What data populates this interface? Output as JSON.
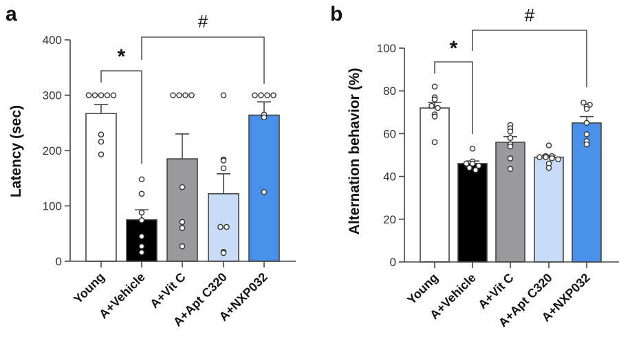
{
  "chart_data": [
    {
      "panel": "a",
      "type": "bar",
      "title": "",
      "xlabel": "",
      "ylabel": "Latency (sec)",
      "ylim": [
        0,
        400
      ],
      "yticks": [
        0,
        100,
        200,
        300,
        400
      ],
      "grid": false,
      "legend": "none",
      "categories": [
        "Young",
        "A+Vehicle",
        "A+Vit C",
        "A+Apt C320",
        "A+NXP032"
      ],
      "colors": [
        "#ffffff",
        "#000000",
        "#9a9a9c",
        "#c8dcf5",
        "#4a90e8"
      ],
      "values": [
        267,
        75,
        185,
        122,
        264
      ],
      "sem": [
        16,
        18,
        45,
        36,
        24
      ],
      "points": [
        [
          300,
          300,
          300,
          300,
          300,
          229,
          216,
          193
        ],
        [
          148,
          122,
          88,
          74,
          45,
          27,
          16
        ],
        [
          300,
          300,
          300,
          300,
          134,
          71,
          60,
          27
        ],
        [
          300,
          184,
          182,
          168,
          62,
          62,
          17,
          15
        ],
        [
          300,
          300,
          300,
          300,
          265,
          260,
          125
        ]
      ],
      "significance": [
        {
          "from": 0,
          "to": 1,
          "label": "*"
        },
        {
          "from": 1,
          "to": 4,
          "label": "#"
        }
      ]
    },
    {
      "panel": "b",
      "type": "bar",
      "title": "",
      "xlabel": "",
      "ylabel": "Alternation behavior (%)",
      "ylim": [
        0,
        100
      ],
      "yticks": [
        0,
        20,
        40,
        60,
        80,
        100
      ],
      "grid": false,
      "legend": "none",
      "categories": [
        "Young",
        "A+Vehicle",
        "A+Vit C",
        "A+Apt C320",
        "A+NXP032"
      ],
      "colors": [
        "#ffffff",
        "#000000",
        "#9a9a9c",
        "#c8dcf5",
        "#4a90e8"
      ],
      "values": [
        72,
        46,
        56,
        49,
        65
      ],
      "sem": [
        2.6,
        1.2,
        2.6,
        0.9,
        3.0
      ],
      "points": [
        [
          82,
          77,
          76,
          73,
          72,
          69,
          68,
          56
        ],
        [
          53,
          47,
          46,
          46,
          45,
          44,
          43
        ],
        [
          64,
          62.5,
          61,
          58,
          55,
          54,
          48.4,
          43.5
        ],
        [
          54.5,
          49.5,
          49.5,
          49,
          49,
          48.5,
          48,
          46,
          44
        ],
        [
          74.5,
          73.5,
          72.6,
          71.6,
          65,
          59.7,
          56.5,
          55
        ]
      ],
      "significance": [
        {
          "from": 0,
          "to": 1,
          "label": "*"
        },
        {
          "from": 1,
          "to": 4,
          "label": "#"
        }
      ]
    }
  ]
}
